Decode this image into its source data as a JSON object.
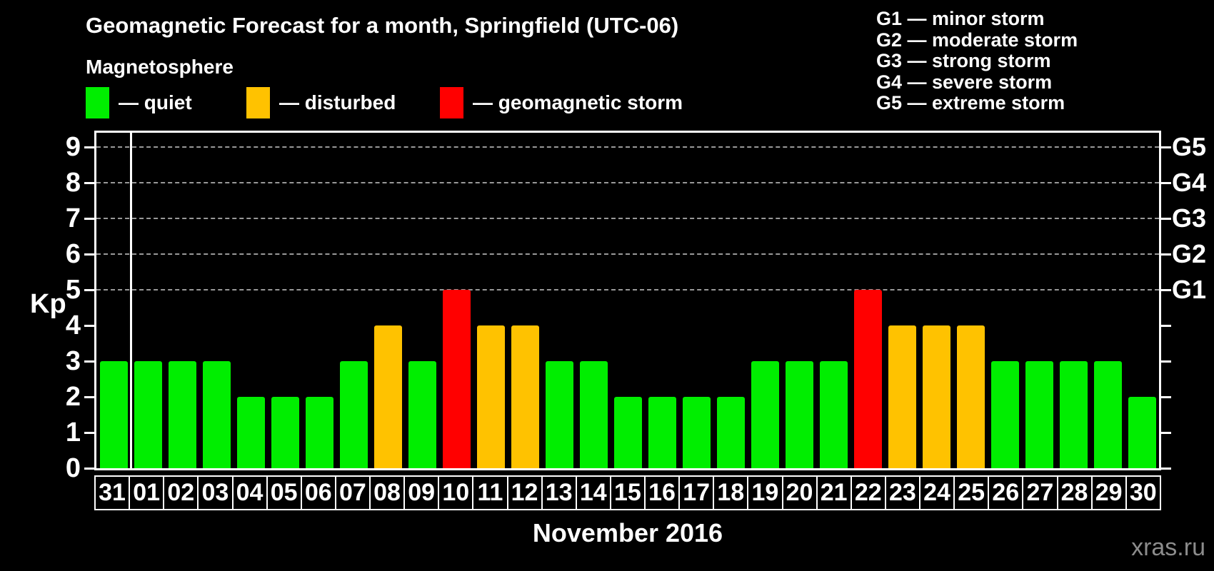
{
  "header": {
    "title": "Geomagnetic Forecast for a month, Springfield (UTC-06)",
    "subtitle": "Magnetosphere"
  },
  "legend": {
    "items": [
      {
        "name": "quiet",
        "label": "— quiet",
        "color": "#00ee00"
      },
      {
        "name": "disturbed",
        "label": "— disturbed",
        "color": "#ffc200"
      },
      {
        "name": "storm",
        "label": "— geomagnetic storm",
        "color": "#ff0000"
      }
    ]
  },
  "storm_scale_legend": {
    "lines": [
      "G1 — minor storm",
      "G2 — moderate storm",
      "G3 — strong storm",
      "G4 — severe storm",
      "G5 — extreme storm"
    ]
  },
  "chart_data": {
    "type": "bar",
    "title": "Geomagnetic Forecast for a month, Springfield (UTC-06)",
    "ylabel": "Kp",
    "xlabel": "November 2016",
    "ylim": [
      0,
      9.4
    ],
    "y_ticks": [
      0,
      1,
      2,
      3,
      4,
      5,
      6,
      7,
      8,
      9
    ],
    "gridlines": [
      5,
      6,
      7,
      8,
      9
    ],
    "grid_on": true,
    "grid_color": "#999999",
    "right_axis_labels": [
      {
        "value": 5,
        "label": "G1"
      },
      {
        "value": 6,
        "label": "G2"
      },
      {
        "value": 7,
        "label": "G3"
      },
      {
        "value": 8,
        "label": "G4"
      },
      {
        "value": 9,
        "label": "G5"
      }
    ],
    "legend_position": "top-left",
    "categories": [
      "31",
      "01",
      "02",
      "03",
      "04",
      "05",
      "06",
      "07",
      "08",
      "09",
      "10",
      "11",
      "12",
      "13",
      "14",
      "15",
      "16",
      "17",
      "18",
      "19",
      "20",
      "21",
      "22",
      "23",
      "24",
      "25",
      "26",
      "27",
      "28",
      "29",
      "30"
    ],
    "values": [
      3,
      3,
      3,
      3,
      2,
      2,
      2,
      3,
      4,
      3,
      5,
      4,
      4,
      3,
      3,
      2,
      2,
      2,
      2,
      3,
      3,
      3,
      5,
      4,
      4,
      4,
      3,
      3,
      3,
      3,
      2
    ],
    "statuses": [
      "quiet",
      "quiet",
      "quiet",
      "quiet",
      "quiet",
      "quiet",
      "quiet",
      "quiet",
      "disturbed",
      "quiet",
      "storm",
      "disturbed",
      "disturbed",
      "quiet",
      "quiet",
      "quiet",
      "quiet",
      "quiet",
      "quiet",
      "quiet",
      "quiet",
      "quiet",
      "storm",
      "disturbed",
      "disturbed",
      "disturbed",
      "quiet",
      "quiet",
      "quiet",
      "quiet",
      "quiet"
    ],
    "colors": {
      "quiet": "#00ee00",
      "disturbed": "#ffc200",
      "storm": "#ff0000"
    },
    "separator_after_index": 0
  },
  "footer": {
    "watermark": "xras.ru"
  }
}
